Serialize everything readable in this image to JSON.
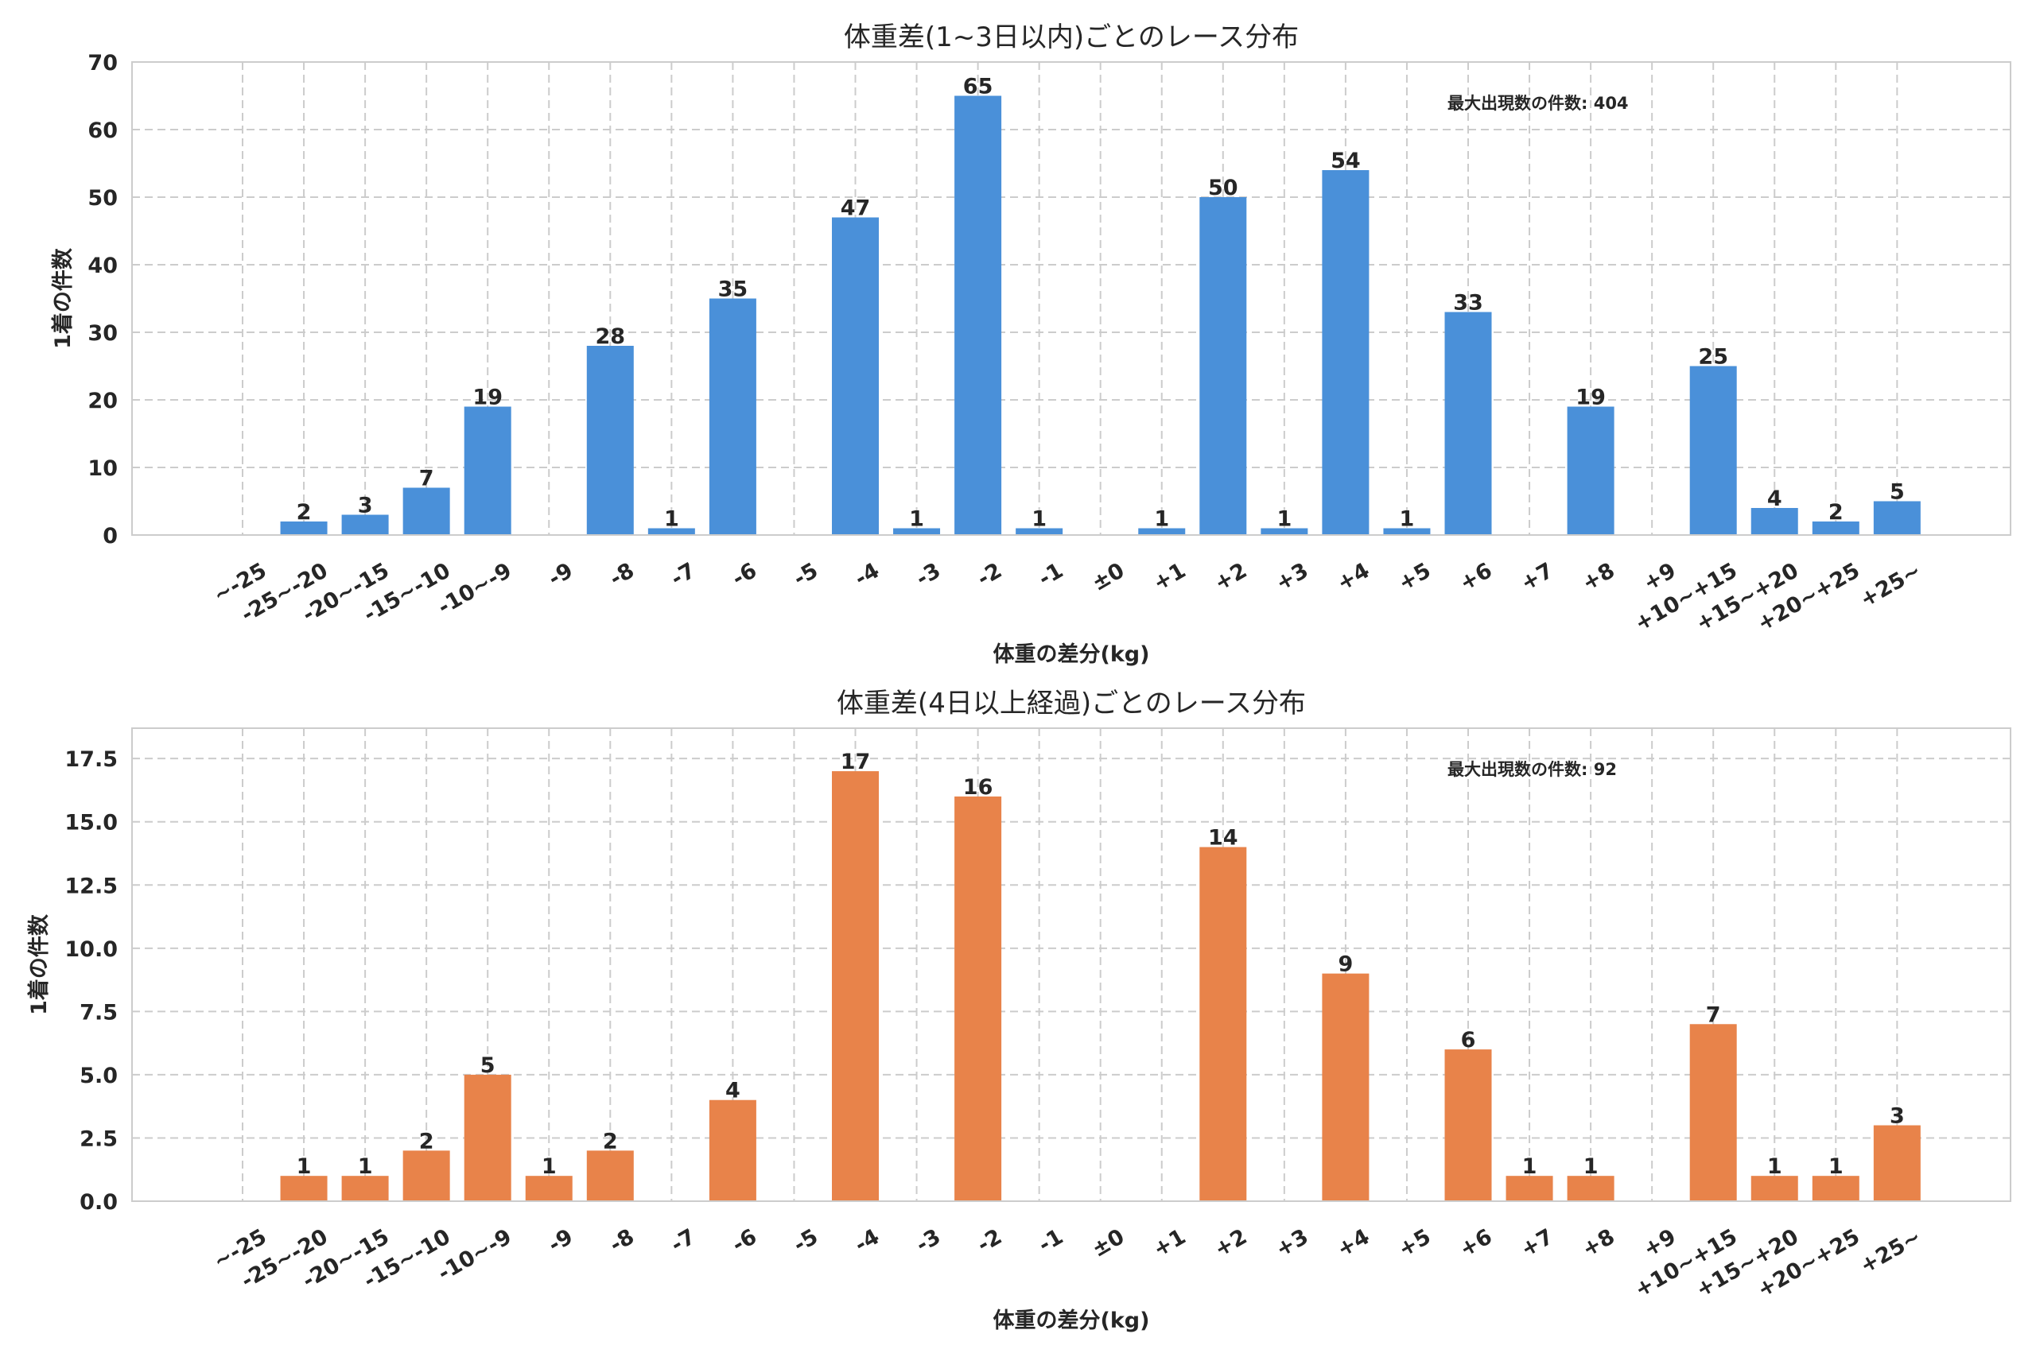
{
  "chart_data": [
    {
      "type": "bar",
      "title": "体重差(1~3日以内)ごとのレース分布",
      "xlabel": "体重の差分(kg)",
      "ylabel": "1着の件数",
      "annotation": "最大出現数の件数: 404",
      "color": "#4A90D9",
      "ylim": [
        0,
        70
      ],
      "yticks": [
        "0",
        "10",
        "20",
        "30",
        "40",
        "50",
        "60",
        "70"
      ],
      "ytick_values": [
        0,
        10,
        20,
        30,
        40,
        50,
        60,
        70
      ],
      "grid": true,
      "categories": [
        "~-25",
        "-25~-20",
        "-20~-15",
        "-15~-10",
        "-10~-9",
        "-9",
        "-8",
        "-7",
        "-6",
        "-5",
        "-4",
        "-3",
        "-2",
        "-1",
        "±0",
        "+1",
        "+2",
        "+3",
        "+4",
        "+5",
        "+6",
        "+7",
        "+8",
        "+9",
        "+10~+15",
        "+15~+20",
        "+20~+25",
        "+25~"
      ],
      "values": [
        0,
        2,
        3,
        7,
        19,
        0,
        28,
        1,
        35,
        0,
        47,
        1,
        65,
        1,
        0,
        1,
        50,
        1,
        54,
        1,
        33,
        0,
        19,
        0,
        25,
        4,
        2,
        5
      ]
    },
    {
      "type": "bar",
      "title": "体重差(4日以上経過)ごとのレース分布",
      "xlabel": "体重の差分(kg)",
      "ylabel": "1着の件数",
      "annotation": "最大出現数の件数: 92",
      "color": "#E8834A",
      "ylim": [
        0,
        18.7
      ],
      "yticks": [
        "0.0",
        "2.5",
        "5.0",
        "7.5",
        "10.0",
        "12.5",
        "15.0",
        "17.5"
      ],
      "ytick_values": [
        0,
        2.5,
        5,
        7.5,
        10,
        12.5,
        15,
        17.5
      ],
      "grid": true,
      "categories": [
        "~-25",
        "-25~-20",
        "-20~-15",
        "-15~-10",
        "-10~-9",
        "-9",
        "-8",
        "-7",
        "-6",
        "-5",
        "-4",
        "-3",
        "-2",
        "-1",
        "±0",
        "+1",
        "+2",
        "+3",
        "+4",
        "+5",
        "+6",
        "+7",
        "+8",
        "+9",
        "+10~+15",
        "+15~+20",
        "+20~+25",
        "+25~"
      ],
      "values": [
        0,
        1,
        1,
        2,
        5,
        1,
        2,
        0,
        4,
        0,
        17,
        0,
        16,
        0,
        0,
        0,
        14,
        0,
        9,
        0,
        6,
        1,
        1,
        0,
        7,
        1,
        1,
        3
      ]
    }
  ]
}
